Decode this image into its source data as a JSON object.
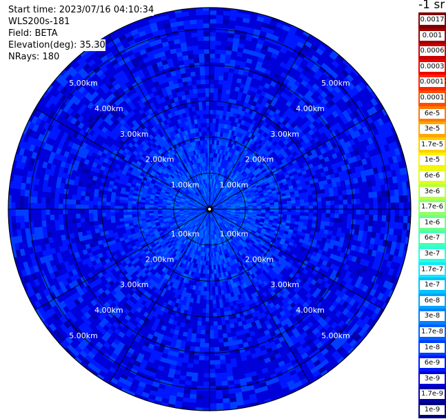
{
  "info": {
    "start_time": "Start time: 2023/07/16 04:10:34",
    "station": "WLS200s-181",
    "field": "Field: BETA",
    "elevation": "Elevation(deg): 35.30",
    "nrays": "NRays: 180"
  },
  "chart_data": {
    "type": "heatmap",
    "projection": "polar (PPI scan)",
    "field": "BETA",
    "units": "-1 sr",
    "elevation_deg": 35.3,
    "n_rays": 180,
    "max_range_km": 5.6,
    "range_rings_km": [
      1.0,
      2.0,
      3.0,
      4.0,
      5.0
    ],
    "ring_labels": [
      "1.00km",
      "2.00km",
      "3.00km",
      "4.00km",
      "5.00km"
    ],
    "spokes_deg": [
      0,
      30,
      60,
      90,
      120,
      150,
      180,
      210,
      240,
      270,
      300,
      330
    ],
    "value_profile": [
      {
        "range_km": 0.5,
        "beta": 1.7e-08
      },
      {
        "range_km": 1.0,
        "beta": 1.7e-08
      },
      {
        "range_km": 1.5,
        "beta": 1e-08
      },
      {
        "range_km": 2.0,
        "beta": 1e-08
      },
      {
        "range_km": 3.0,
        "beta": 6e-09
      },
      {
        "range_km": 4.0,
        "beta": 6e-09
      },
      {
        "range_km": 5.0,
        "beta": 6e-09
      }
    ],
    "colorbar": {
      "labels": [
        "0.0017",
        "0.001",
        "0.0006",
        "0.0003",
        "0.00017",
        "0.0001",
        "6e-5",
        "3e-5",
        "1.7e-5",
        "1e-5",
        "6e-6",
        "3e-6",
        "1.7e-6",
        "1e-6",
        "6e-7",
        "3e-7",
        "1.7e-7",
        "1e-7",
        "6e-8",
        "3e-8",
        "1.7e-8",
        "1e-8",
        "6e-9",
        "3e-9",
        "1.7e-9",
        "1e-9"
      ],
      "colors": [
        "#7f0000",
        "#a10000",
        "#c80000",
        "#f00000",
        "#ff2400",
        "#ff4d00",
        "#ff7a00",
        "#ffa600",
        "#ffd000",
        "#fff200",
        "#e0ff18",
        "#b8ff40",
        "#90ff68",
        "#6cff8c",
        "#48ffb4",
        "#28ffd8",
        "#10e8ff",
        "#00c4ff",
        "#00a4ff",
        "#0082ff",
        "#0060ff",
        "#003eff",
        "#0018ff",
        "#0000d8",
        "#0000a8",
        "#00007c"
      ]
    }
  }
}
